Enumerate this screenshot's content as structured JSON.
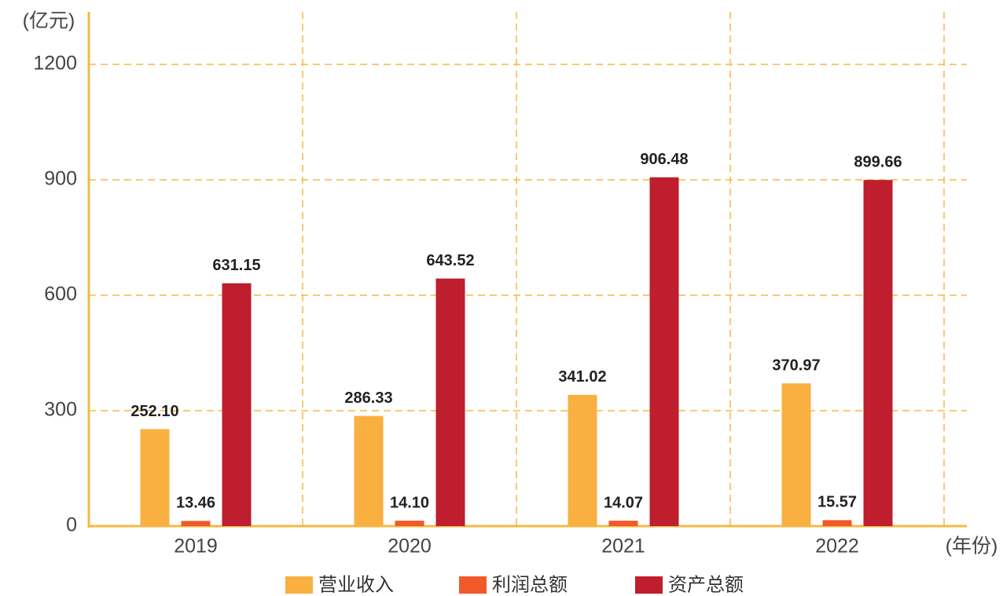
{
  "chart_data": {
    "type": "bar",
    "y_axis_label": "(亿元)",
    "x_axis_label": "(年份)",
    "categories": [
      "2019",
      "2020",
      "2021",
      "2022"
    ],
    "series": [
      {
        "name": "营业收入",
        "color": "#f9b040",
        "values": [
          252.1,
          286.33,
          341.02,
          370.97
        ],
        "value_labels": [
          "252.10",
          "286.33",
          "341.02",
          "370.97"
        ]
      },
      {
        "name": "利润总额",
        "color": "#f05a28",
        "values": [
          13.46,
          14.1,
          14.07,
          15.57
        ],
        "value_labels": [
          "13.46",
          "14.10",
          "14.07",
          "15.57"
        ]
      },
      {
        "name": "资产总额",
        "color": "#be1e2d",
        "values": [
          631.15,
          643.52,
          906.48,
          899.66
        ],
        "value_labels": [
          "631.15",
          "643.52",
          "906.48",
          "899.66"
        ]
      }
    ],
    "ylim": [
      0,
      1200
    ],
    "yticks": [
      0,
      300,
      600,
      900,
      1200
    ],
    "grid": true
  }
}
